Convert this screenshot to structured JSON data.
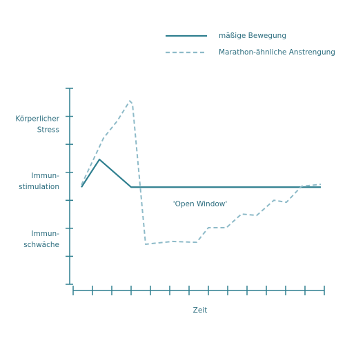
{
  "chart_data": {
    "type": "line",
    "x_label": "Zeit",
    "annotation": "'Open Window'",
    "xlim": [
      0,
      13
    ],
    "xticks": [
      0,
      1,
      2,
      3,
      4,
      5,
      6,
      7,
      8,
      9,
      10,
      11,
      12,
      13
    ],
    "ylim": [
      0,
      7
    ],
    "yticks": [
      0,
      1,
      2,
      3,
      4,
      5,
      6,
      7
    ],
    "ylabels": [
      {
        "value": 5.7,
        "lines": [
          "Körperlicher",
          "Stress"
        ]
      },
      {
        "value": 3.67,
        "lines": [
          "Immun-",
          "stimulation"
        ]
      },
      {
        "value": 1.6,
        "lines": [
          "Immun-",
          "schwäche"
        ]
      }
    ],
    "series": [
      {
        "name": "mäßige Bewegung",
        "color": "#2f7f8f",
        "dashed": false,
        "x": [
          0.43,
          1.36,
          3.0,
          12.82
        ],
        "values": [
          3.47,
          4.46,
          3.47,
          3.47
        ]
      },
      {
        "name": "Marathon-ähnliche Anstrengung",
        "color": "#8dbac8",
        "dashed": true,
        "x": [
          0.43,
          1.57,
          2.29,
          2.93,
          3.07,
          3.75,
          4.43,
          5.14,
          6.39,
          7.0,
          7.93,
          8.71,
          9.5,
          10.39,
          11.04,
          11.82,
          12.82
        ],
        "values": [
          3.55,
          5.22,
          5.84,
          6.55,
          6.45,
          1.43,
          1.48,
          1.53,
          1.5,
          2.02,
          2.02,
          2.51,
          2.46,
          3.0,
          2.93,
          3.5,
          3.57
        ]
      }
    ]
  }
}
